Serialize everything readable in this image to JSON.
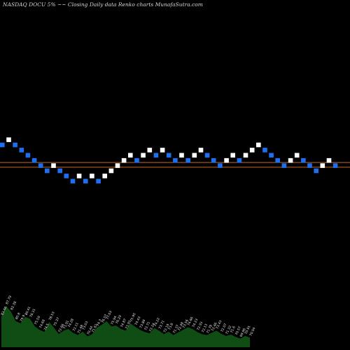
{
  "chart_data": {
    "type": "renko",
    "title": "NASDAQ DOCU 5% ~~ Closing Daily data Renko charts MunafaSutra.com",
    "colors": {
      "background": "#000000",
      "up_brick": "#ffffff",
      "down_brick": "#1e6ef0",
      "reference_line": "#c8661e",
      "volume_fill": "#0f4d14"
    },
    "bricks": [
      {
        "level": 5,
        "dir": "down"
      },
      {
        "level": 6,
        "dir": "up"
      },
      {
        "level": 5,
        "dir": "down"
      },
      {
        "level": 4,
        "dir": "down"
      },
      {
        "level": 3,
        "dir": "down"
      },
      {
        "level": 2,
        "dir": "down"
      },
      {
        "level": 1,
        "dir": "down"
      },
      {
        "level": 0,
        "dir": "down"
      },
      {
        "level": 1,
        "dir": "up"
      },
      {
        "level": 0,
        "dir": "down"
      },
      {
        "level": -1,
        "dir": "down"
      },
      {
        "level": -2,
        "dir": "down"
      },
      {
        "level": -1,
        "dir": "up"
      },
      {
        "level": -2,
        "dir": "down"
      },
      {
        "level": -1,
        "dir": "up"
      },
      {
        "level": -2,
        "dir": "down"
      },
      {
        "level": -1,
        "dir": "up"
      },
      {
        "level": 0,
        "dir": "up"
      },
      {
        "level": 1,
        "dir": "up"
      },
      {
        "level": 2,
        "dir": "up"
      },
      {
        "level": 3,
        "dir": "up"
      },
      {
        "level": 2,
        "dir": "down"
      },
      {
        "level": 3,
        "dir": "up"
      },
      {
        "level": 4,
        "dir": "up"
      },
      {
        "level": 3,
        "dir": "down"
      },
      {
        "level": 4,
        "dir": "up"
      },
      {
        "level": 3,
        "dir": "down"
      },
      {
        "level": 2,
        "dir": "down"
      },
      {
        "level": 3,
        "dir": "up"
      },
      {
        "level": 2,
        "dir": "down"
      },
      {
        "level": 3,
        "dir": "up"
      },
      {
        "level": 4,
        "dir": "up"
      },
      {
        "level": 3,
        "dir": "down"
      },
      {
        "level": 2,
        "dir": "down"
      },
      {
        "level": 1,
        "dir": "down"
      },
      {
        "level": 2,
        "dir": "up"
      },
      {
        "level": 3,
        "dir": "up"
      },
      {
        "level": 2,
        "dir": "down"
      },
      {
        "level": 3,
        "dir": "up"
      },
      {
        "level": 4,
        "dir": "up"
      },
      {
        "level": 5,
        "dir": "up"
      },
      {
        "level": 4,
        "dir": "down"
      },
      {
        "level": 3,
        "dir": "down"
      },
      {
        "level": 2,
        "dir": "down"
      },
      {
        "level": 1,
        "dir": "down"
      },
      {
        "level": 2,
        "dir": "up"
      },
      {
        "level": 3,
        "dir": "up"
      },
      {
        "level": 2,
        "dir": "down"
      },
      {
        "level": 1,
        "dir": "down"
      },
      {
        "level": 0,
        "dir": "down"
      },
      {
        "level": 1,
        "dir": "up"
      },
      {
        "level": 2,
        "dir": "up"
      },
      {
        "level": 1,
        "dir": "down"
      }
    ],
    "reference_levels": [
      1.6,
      0.7
    ],
    "volume": {
      "values": [
        70,
        95,
        82,
        60,
        55,
        70,
        65,
        48,
        40,
        35,
        58,
        45,
        30,
        38,
        42,
        33,
        28,
        36,
        25,
        30,
        45,
        52,
        60,
        48,
        50,
        42,
        38,
        55,
        47,
        40,
        35,
        32,
        44,
        38,
        30,
        36,
        28,
        34,
        40,
        46,
        42,
        35,
        30,
        28,
        33,
        38,
        31,
        26,
        29,
        24,
        20,
        26,
        22
      ],
      "labels": [
        "83.46",
        "87.79",
        "82.38",
        "80.8",
        "79.9",
        "80.41",
        "78.31",
        "75.59",
        "74.68",
        "74.5",
        "78.53",
        "75.37",
        "72.66",
        "73.91",
        "74.28",
        "72.11",
        "71.48",
        "73.03",
        "70.44",
        "71.61",
        "74.3",
        "76.57",
        "77.03",
        "75.94",
        "76.29",
        "74.87",
        "73.91",
        "75.95",
        "74.43",
        "73.88",
        "72.71",
        "72.24",
        "74.22",
        "73.71",
        "72.19",
        "73.8",
        "71.37",
        "72.48",
        "73.56",
        "74.66",
        "74.23",
        "72.93",
        "72.13",
        "71.78",
        "72.46",
        "73.43",
        "72.07",
        "71.32",
        "71.6",
        "70.57",
        "69.96",
        "70.91",
        "70.04"
      ]
    }
  }
}
